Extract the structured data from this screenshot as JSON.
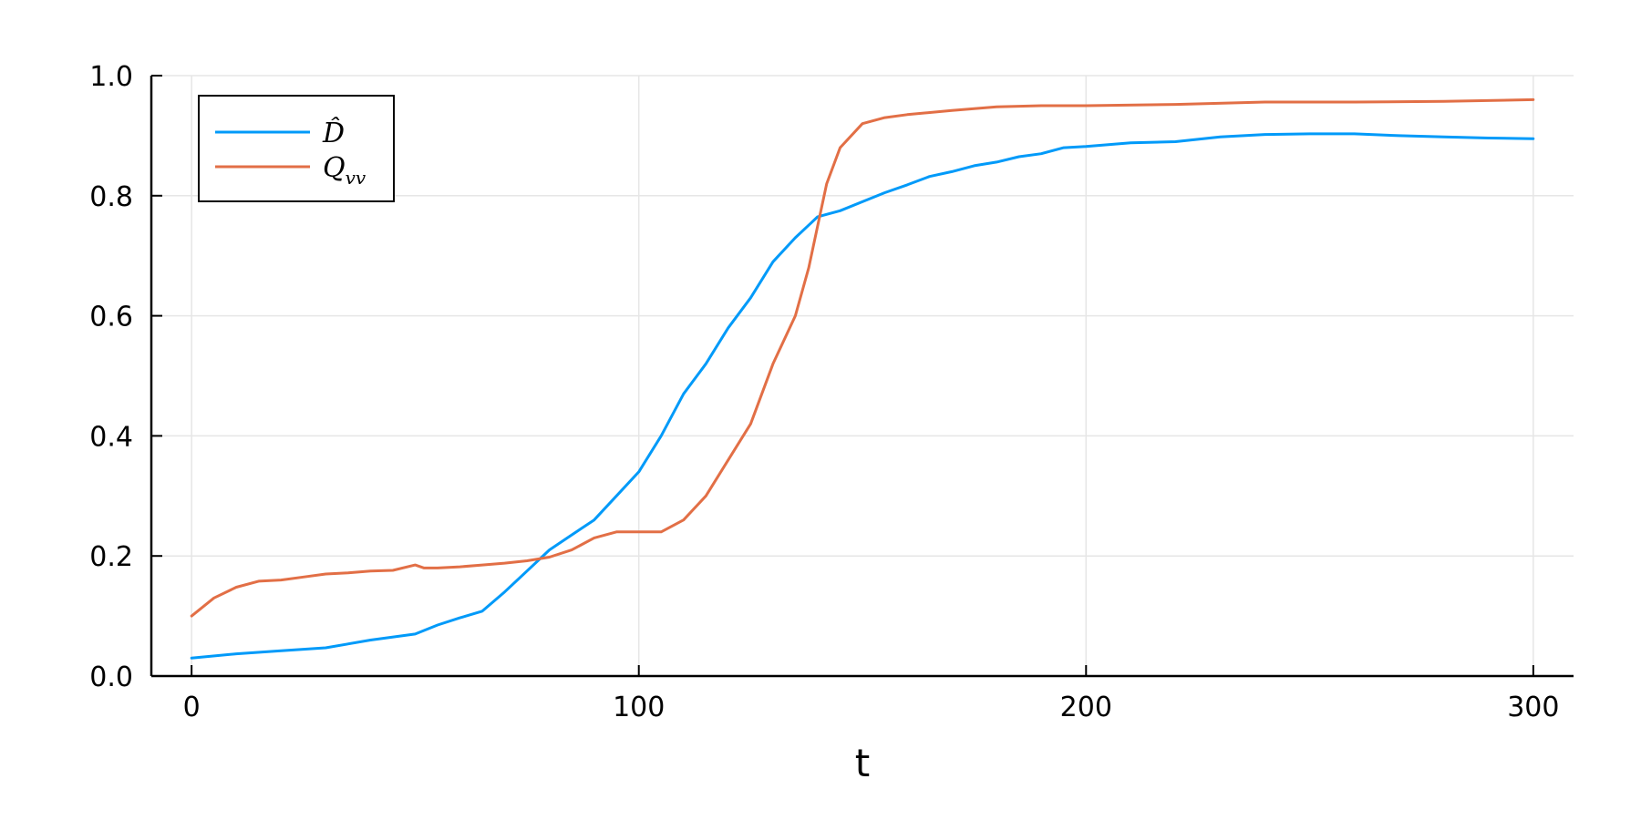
{
  "chart_data": {
    "type": "line",
    "title": "",
    "xlabel": "t",
    "ylabel": "",
    "xlim": [
      -9,
      309
    ],
    "ylim": [
      0,
      1
    ],
    "xticks": [
      0,
      100,
      200,
      300
    ],
    "yticks": [
      0.0,
      0.2,
      0.4,
      0.6,
      0.8,
      1.0
    ],
    "xtick_labels": [
      "0",
      "100",
      "200",
      "300"
    ],
    "ytick_labels": [
      "0.0",
      "0.2",
      "0.4",
      "0.6",
      "0.8",
      "1.0"
    ],
    "grid": true,
    "legend": {
      "position": "top-left",
      "entries": [
        "D̂",
        "Q_vv"
      ]
    },
    "series": [
      {
        "name": "D̂",
        "label_main": "D̂",
        "label_sub": "",
        "color": "#009af9",
        "x": [
          0,
          10,
          20,
          30,
          40,
          50,
          55,
          60,
          65,
          70,
          75,
          80,
          85,
          90,
          95,
          100,
          105,
          110,
          115,
          120,
          125,
          130,
          135,
          140,
          145,
          150,
          155,
          160,
          165,
          170,
          175,
          180,
          185,
          190,
          195,
          200,
          210,
          220,
          230,
          240,
          250,
          260,
          270,
          280,
          290,
          300
        ],
        "y": [
          0.03,
          0.037,
          0.042,
          0.047,
          0.06,
          0.07,
          0.085,
          0.097,
          0.108,
          0.14,
          0.175,
          0.21,
          0.235,
          0.26,
          0.3,
          0.34,
          0.4,
          0.47,
          0.52,
          0.58,
          0.63,
          0.69,
          0.73,
          0.765,
          0.775,
          0.79,
          0.805,
          0.818,
          0.832,
          0.84,
          0.85,
          0.856,
          0.865,
          0.87,
          0.88,
          0.882,
          0.888,
          0.89,
          0.898,
          0.902,
          0.903,
          0.903,
          0.9,
          0.898,
          0.896,
          0.895
        ]
      },
      {
        "name": "Q_vv",
        "label_main": "Q",
        "label_sub": "vv",
        "color": "#e26f46",
        "x": [
          0,
          5,
          10,
          15,
          20,
          25,
          30,
          35,
          40,
          45,
          50,
          52,
          55,
          60,
          65,
          70,
          75,
          80,
          85,
          90,
          95,
          100,
          105,
          110,
          115,
          120,
          125,
          130,
          135,
          138,
          140,
          142,
          145,
          150,
          155,
          160,
          170,
          180,
          190,
          200,
          220,
          240,
          260,
          280,
          300
        ],
        "y": [
          0.1,
          0.13,
          0.148,
          0.158,
          0.16,
          0.165,
          0.17,
          0.172,
          0.175,
          0.176,
          0.185,
          0.18,
          0.18,
          0.182,
          0.185,
          0.188,
          0.192,
          0.198,
          0.21,
          0.23,
          0.24,
          0.24,
          0.24,
          0.26,
          0.3,
          0.36,
          0.42,
          0.52,
          0.6,
          0.68,
          0.75,
          0.82,
          0.88,
          0.92,
          0.93,
          0.935,
          0.942,
          0.948,
          0.95,
          0.95,
          0.952,
          0.956,
          0.956,
          0.957,
          0.96
        ]
      }
    ]
  }
}
